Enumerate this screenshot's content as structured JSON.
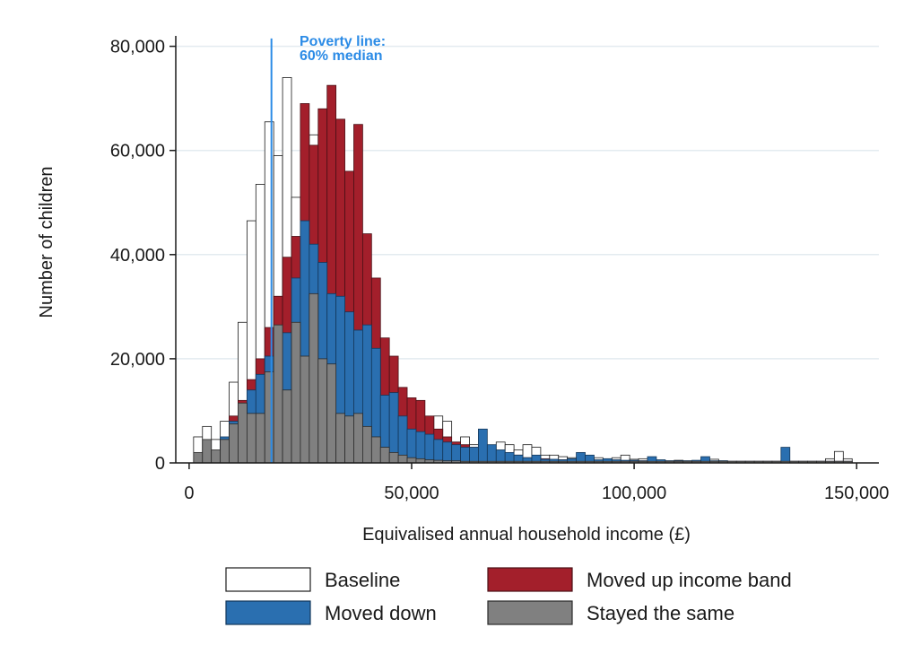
{
  "chart_data": {
    "type": "bar",
    "title": "",
    "xlabel": "Equivalised annual household income (£)",
    "ylabel": "Number of children",
    "xlim": [
      -3000,
      155000
    ],
    "ylim": [
      0,
      82000
    ],
    "x_ticks": [
      0,
      50000,
      100000,
      150000
    ],
    "x_tick_labels": [
      "0",
      "50,000",
      "100,000",
      "150,000"
    ],
    "y_ticks": [
      0,
      20000,
      40000,
      60000,
      80000
    ],
    "y_tick_labels": [
      "0",
      "20,000",
      "40,000",
      "60,000",
      "80,000"
    ],
    "grid": true,
    "legend_position": "bottom",
    "bin_width": 2000,
    "x": [
      2000,
      4000,
      6000,
      8000,
      10000,
      12000,
      14000,
      16000,
      18000,
      20000,
      22000,
      24000,
      26000,
      28000,
      30000,
      32000,
      34000,
      36000,
      38000,
      40000,
      42000,
      44000,
      46000,
      48000,
      50000,
      52000,
      54000,
      56000,
      58000,
      60000,
      62000,
      64000,
      66000,
      68000,
      70000,
      72000,
      74000,
      76000,
      78000,
      80000,
      82000,
      84000,
      86000,
      88000,
      90000,
      92000,
      94000,
      96000,
      98000,
      100000,
      102000,
      104000,
      106000,
      108000,
      110000,
      112000,
      114000,
      116000,
      118000,
      120000,
      122000,
      124000,
      126000,
      128000,
      130000,
      132000,
      134000,
      136000,
      138000,
      140000,
      142000,
      144000,
      146000,
      148000
    ],
    "series": [
      {
        "name": "Baseline",
        "color": "#ffffff",
        "stroke": "#1a1a1a",
        "values": [
          5000,
          7000,
          4500,
          8000,
          15500,
          27000,
          46500,
          53500,
          65500,
          59000,
          74000,
          51000,
          34000,
          63000,
          36000,
          25000,
          17000,
          12000,
          7000,
          5000,
          3500,
          2500,
          1800,
          2000,
          9500,
          8500,
          2000,
          9000,
          8000,
          4000,
          5000,
          3500,
          1500,
          2500,
          4000,
          3500,
          2500,
          3500,
          3000,
          1500,
          1500,
          1200,
          1000,
          1000,
          800,
          1000,
          800,
          1000,
          1500,
          700,
          800,
          600,
          500,
          400,
          500,
          400,
          400,
          500,
          700,
          400,
          300,
          300,
          300,
          300,
          300,
          300,
          300,
          300,
          300,
          300,
          300,
          800,
          2200,
          800
        ]
      },
      {
        "name": "Moved up income band",
        "color": "#a31f2b",
        "stroke": "#4a1016",
        "values": [
          0,
          0,
          0,
          4500,
          9000,
          12000,
          16000,
          20000,
          26000,
          32000,
          39500,
          43500,
          69000,
          61000,
          68000,
          72500,
          66000,
          56000,
          65000,
          44000,
          35500,
          24000,
          20500,
          14500,
          12500,
          12000,
          9000,
          6500,
          5000,
          4000,
          3500,
          3000,
          2500,
          2500,
          2000,
          1500,
          1500,
          1000,
          1000,
          800,
          600,
          600,
          500,
          500,
          500,
          500,
          400,
          400,
          400,
          400,
          400,
          300,
          300,
          300,
          300,
          300,
          300,
          300,
          300,
          300,
          300,
          300,
          300,
          300,
          300,
          300,
          300,
          300,
          300,
          300,
          300,
          300,
          300,
          300
        ]
      },
      {
        "name": "Moved down",
        "color": "#2a6fb0",
        "stroke": "#13375a",
        "values": [
          0,
          0,
          1000,
          5000,
          8000,
          10000,
          14000,
          17000,
          20500,
          26000,
          25000,
          35500,
          46500,
          42000,
          38500,
          32500,
          32000,
          29000,
          25500,
          26500,
          22000,
          13000,
          13500,
          9000,
          6500,
          6000,
          5500,
          4500,
          4000,
          3500,
          3000,
          3000,
          6500,
          3500,
          2500,
          2000,
          1500,
          1000,
          1500,
          700,
          700,
          600,
          800,
          2000,
          1500,
          600,
          800,
          600,
          500,
          500,
          400,
          1200,
          600,
          400,
          400,
          400,
          500,
          1200,
          400,
          400,
          300,
          300,
          300,
          300,
          300,
          300,
          3000,
          300,
          300,
          300,
          300,
          300,
          300,
          300
        ]
      },
      {
        "name": "Stayed the same",
        "color": "#808080",
        "stroke": "#2a2a2a",
        "values": [
          2000,
          4500,
          2500,
          4500,
          7500,
          11500,
          9500,
          9500,
          17500,
          26500,
          14000,
          27000,
          20500,
          32500,
          20000,
          19000,
          9500,
          9000,
          9500,
          7000,
          5000,
          3000,
          2000,
          1500,
          1000,
          800,
          600,
          500,
          400,
          400,
          300,
          300,
          300,
          300,
          300,
          300,
          300,
          300,
          300,
          300,
          300,
          300,
          300,
          300,
          300,
          300,
          300,
          300,
          300,
          300,
          300,
          300,
          300,
          300,
          300,
          300,
          300,
          300,
          300,
          300,
          300,
          300,
          300,
          300,
          300,
          300,
          300,
          300,
          300,
          300,
          300,
          300,
          300,
          300
        ]
      }
    ],
    "annotations": [
      {
        "type": "vline",
        "x": 18500,
        "color": "#2b8be6",
        "text_lines": [
          "Poverty line:",
          "60% median"
        ]
      }
    ]
  },
  "legend": {
    "items": [
      {
        "label": "Baseline",
        "color": "#ffffff"
      },
      {
        "label": "Moved up income band",
        "color": "#a31f2b"
      },
      {
        "label": "Moved down",
        "color": "#2a6fb0"
      },
      {
        "label": "Stayed the same",
        "color": "#808080"
      }
    ]
  }
}
